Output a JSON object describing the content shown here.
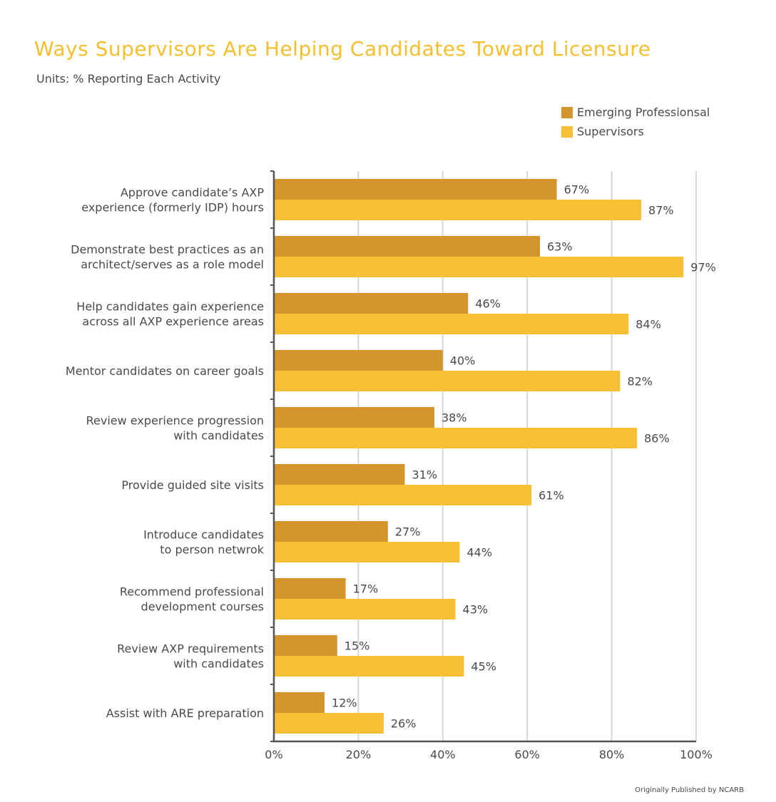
{
  "chart_data": {
    "type": "bar",
    "orientation": "horizontal",
    "title": "Ways Supervisors Are Helping Candidates Toward Licensure",
    "subtitle": "Units: % Reporting Each Activity",
    "categories": [
      [
        "Approve candidate’s AXP",
        "experience (formerly IDP) hours"
      ],
      [
        "Demonstrate best practices as an",
        "architect/serves as a role model"
      ],
      [
        "Help candidates gain experience",
        "across all AXP experience areas"
      ],
      [
        "Mentor candidates on career goals"
      ],
      [
        "Review experience progression",
        "with candidates"
      ],
      [
        "Provide guided site visits"
      ],
      [
        "Introduce candidates",
        "to person netwrok"
      ],
      [
        "Recommend professional",
        "development courses"
      ],
      [
        "Review AXP requirements",
        "with candidates"
      ],
      [
        "Assist with ARE preparation"
      ]
    ],
    "series": [
      {
        "name": "Emerging Professionsal",
        "color": "#d4952a",
        "values": [
          67,
          63,
          46,
          40,
          38,
          31,
          27,
          17,
          15,
          12
        ]
      },
      {
        "name": "Supervisors",
        "color": "#f7bf36",
        "values": [
          87,
          97,
          84,
          82,
          86,
          61,
          44,
          43,
          45,
          26
        ]
      }
    ],
    "xlim": [
      0,
      100
    ],
    "xticks": [
      0,
      20,
      40,
      60,
      80,
      100
    ],
    "tick_suffix": "%",
    "value_suffix": "%",
    "grid": true,
    "legend_position": "top-right"
  },
  "footer": {
    "credit": "Originally Published by NCARB"
  }
}
